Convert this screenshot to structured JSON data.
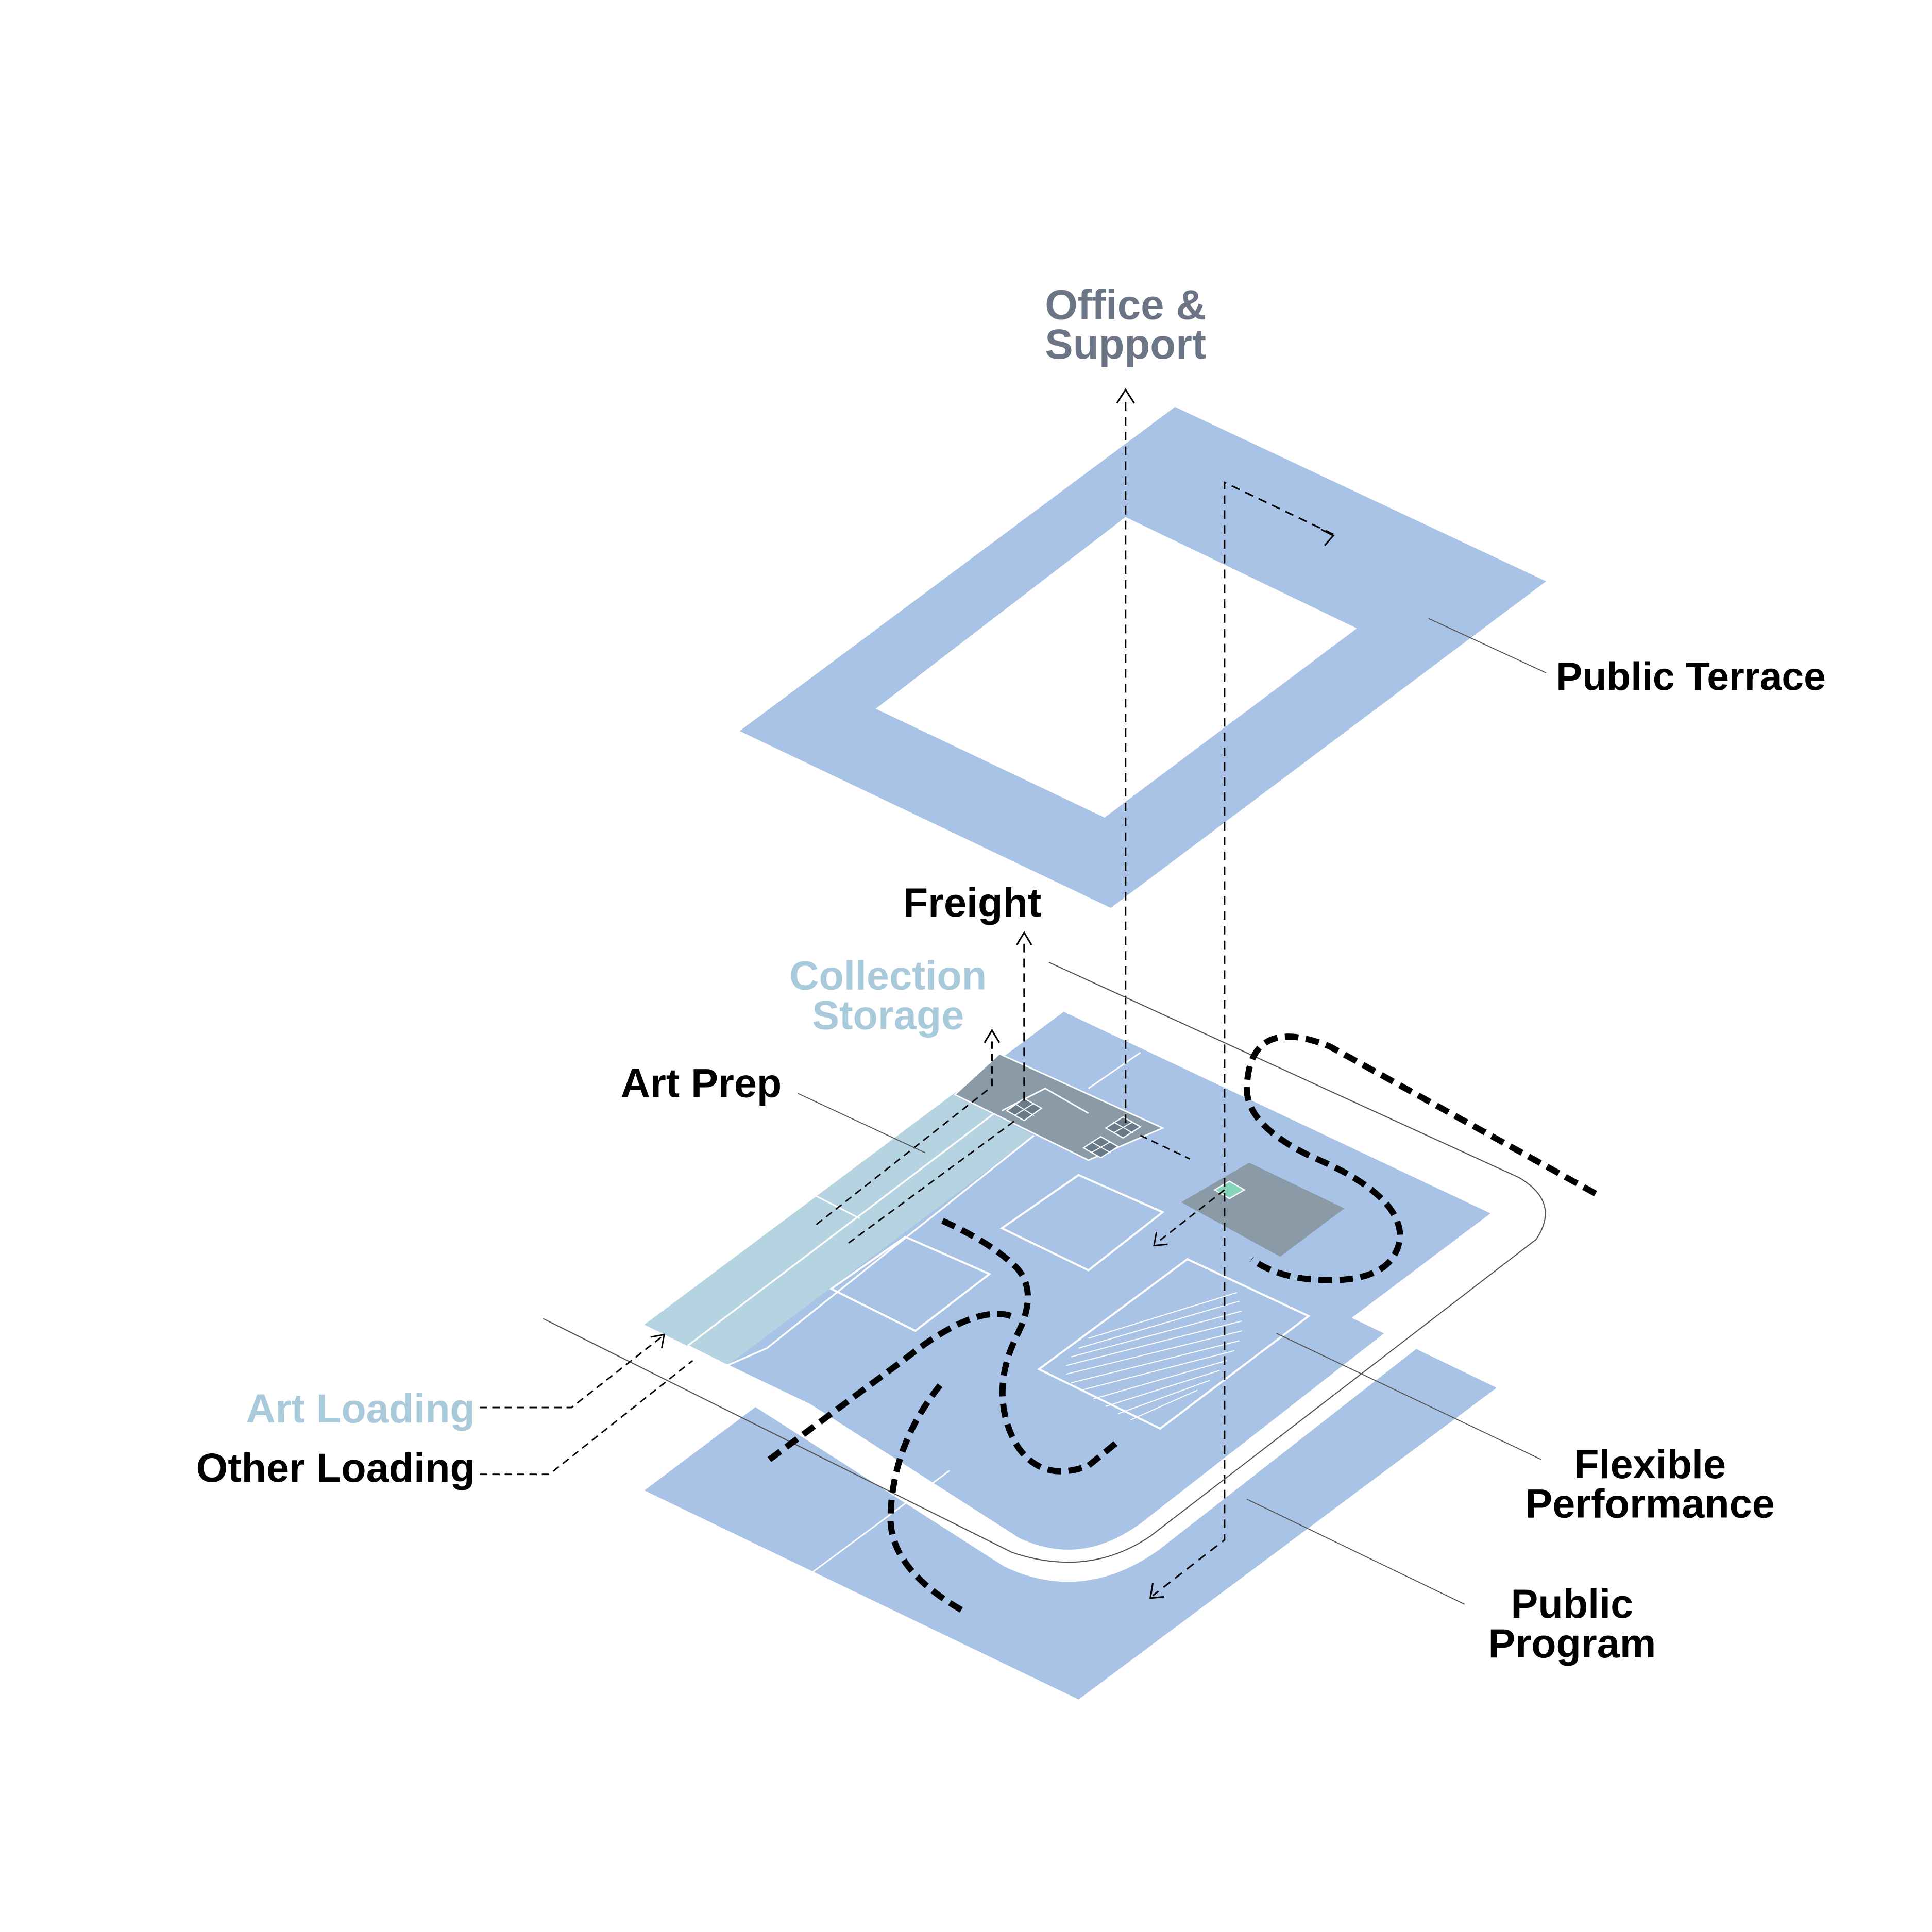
{
  "labels": {
    "office_line1": "Office &",
    "office_line2": "Support",
    "public_terrace": "Public Terrace",
    "freight": "Freight",
    "collection_line1": "Collection",
    "collection_line2": "Storage",
    "art_prep": "Art Prep",
    "art_loading": "Art Loading",
    "other_loading": "Other Loading",
    "flexible_line1": "Flexible",
    "flexible_line2": "Performance",
    "public_line1": "Public",
    "public_line2": "Program"
  },
  "colors": {
    "floor_blue": "#a9c3e6",
    "storage_blue": "#b5d3e0",
    "service_gray": "#8a9aa6",
    "office_label": "#6b7585",
    "collection_label": "#a8cadb",
    "elevator_green": "#86d4bb",
    "ink": "#000000"
  }
}
